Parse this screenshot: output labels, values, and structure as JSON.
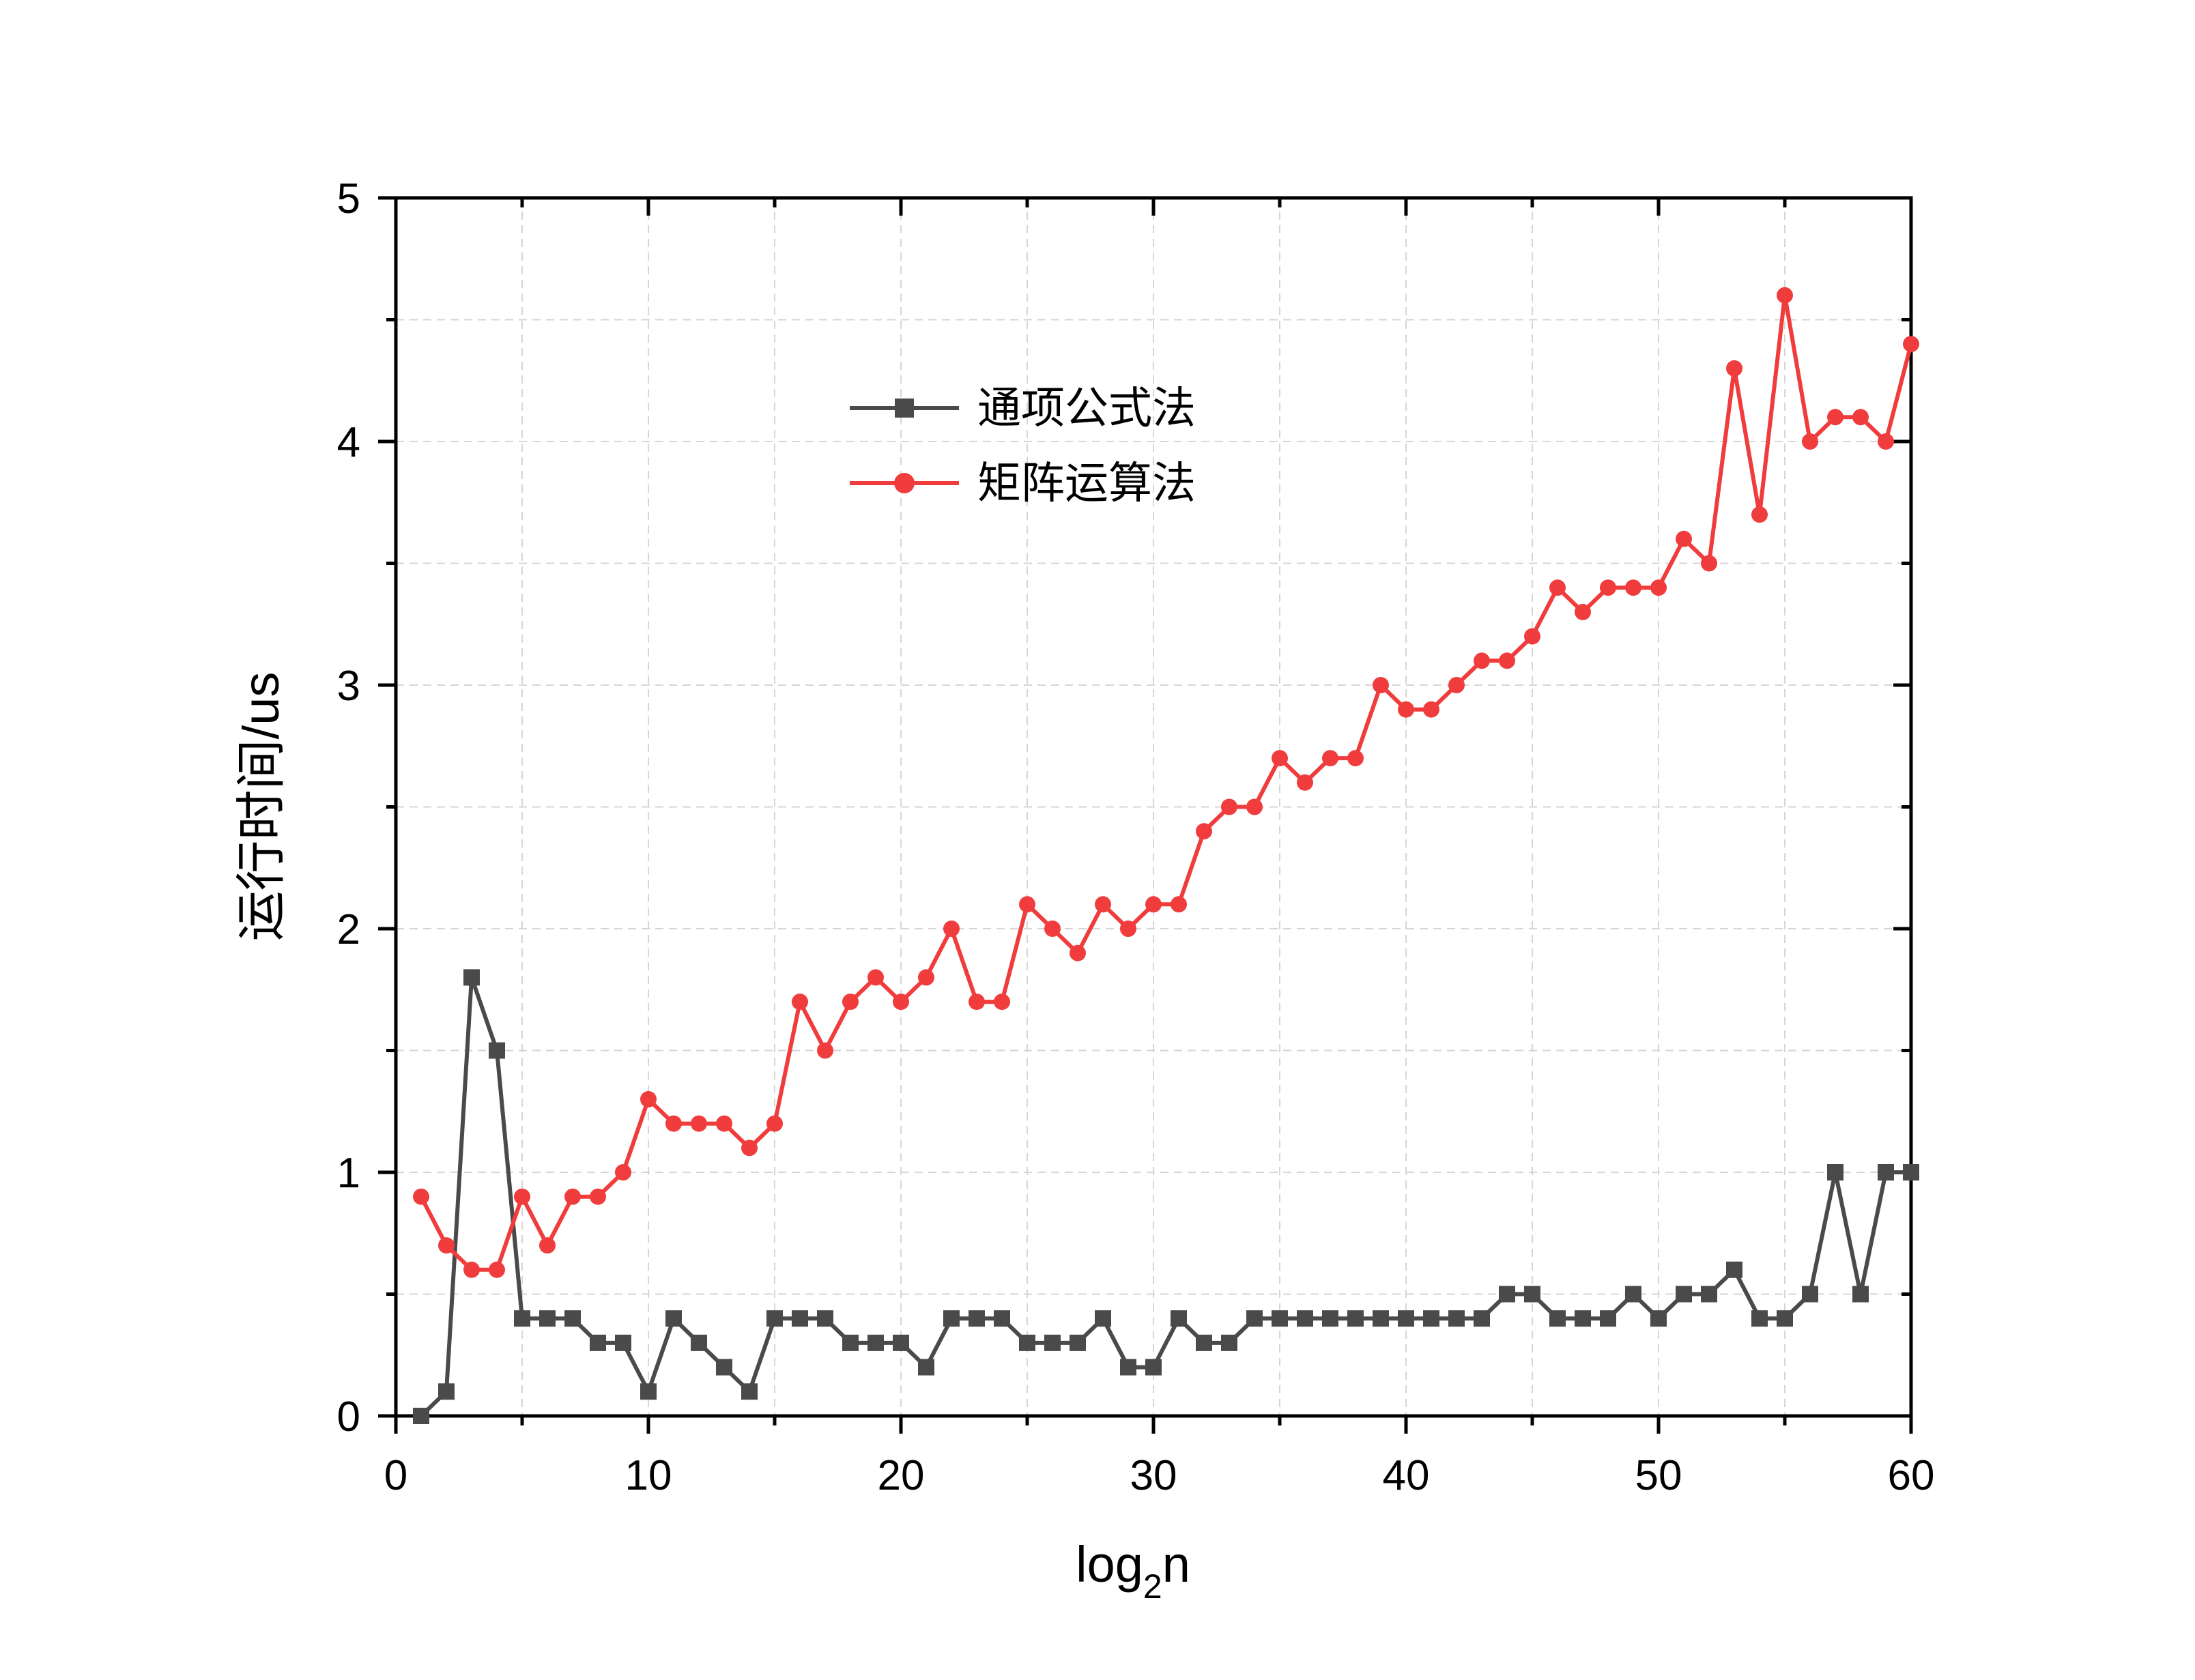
{
  "chart_data": {
    "type": "line",
    "title": "",
    "xlabel": {
      "main": "log",
      "sub": "2",
      "tail": "n"
    },
    "ylabel": "运行时间/us",
    "xlim": [
      0,
      60
    ],
    "ylim": [
      0,
      5
    ],
    "xticks": [
      "0",
      "10",
      "20",
      "30",
      "40",
      "50",
      "60"
    ],
    "yticks": [
      "0",
      "1",
      "2",
      "3",
      "4",
      "5"
    ],
    "grid": true,
    "legend_position": "upper-center",
    "x": [
      1,
      2,
      3,
      4,
      5,
      6,
      7,
      8,
      9,
      10,
      11,
      12,
      13,
      14,
      15,
      16,
      17,
      18,
      19,
      20,
      21,
      22,
      23,
      24,
      25,
      26,
      27,
      28,
      29,
      30,
      31,
      32,
      33,
      34,
      35,
      36,
      37,
      38,
      39,
      40,
      41,
      42,
      43,
      44,
      45,
      46,
      47,
      48,
      49,
      50,
      51,
      52,
      53,
      54,
      55,
      56,
      57,
      58,
      59,
      60
    ],
    "series": [
      {
        "name": "通项公式法",
        "color": "#4a4a4a",
        "marker": "square",
        "values": [
          0,
          0.1,
          1.8,
          1.5,
          0.4,
          0.4,
          0.4,
          0.3,
          0.3,
          0.1,
          0.4,
          0.3,
          0.2,
          0.1,
          0.4,
          0.4,
          0.4,
          0.3,
          0.3,
          0.3,
          0.2,
          0.4,
          0.4,
          0.4,
          0.3,
          0.3,
          0.3,
          0.4,
          0.2,
          0.2,
          0.4,
          0.3,
          0.3,
          0.4,
          0.4,
          0.4,
          0.4,
          0.4,
          0.4,
          0.4,
          0.4,
          0.4,
          0.4,
          0.5,
          0.5,
          0.4,
          0.4,
          0.4,
          0.5,
          0.4,
          0.5,
          0.5,
          0.6,
          0.4,
          0.4,
          0.5,
          1.0,
          0.5,
          1.0,
          1.0
        ]
      },
      {
        "name": "矩阵运算法",
        "color": "#f03c3c",
        "marker": "circle",
        "values": [
          0.9,
          0.7,
          0.6,
          0.6,
          0.9,
          0.7,
          0.9,
          0.9,
          1.0,
          1.3,
          1.2,
          1.2,
          1.2,
          1.1,
          1.2,
          1.7,
          1.5,
          1.7,
          1.8,
          1.7,
          1.8,
          2.0,
          1.7,
          1.7,
          2.1,
          2.0,
          1.9,
          2.1,
          2.0,
          2.1,
          2.1,
          2.4,
          2.5,
          2.5,
          2.7,
          2.6,
          2.7,
          2.7,
          3.0,
          2.9,
          2.9,
          3.0,
          3.1,
          3.1,
          3.2,
          3.4,
          3.3,
          3.4,
          3.4,
          3.4,
          3.6,
          3.5,
          4.3,
          3.7,
          4.6,
          4.0,
          4.1,
          4.1,
          4.0,
          4.4
        ]
      }
    ]
  }
}
